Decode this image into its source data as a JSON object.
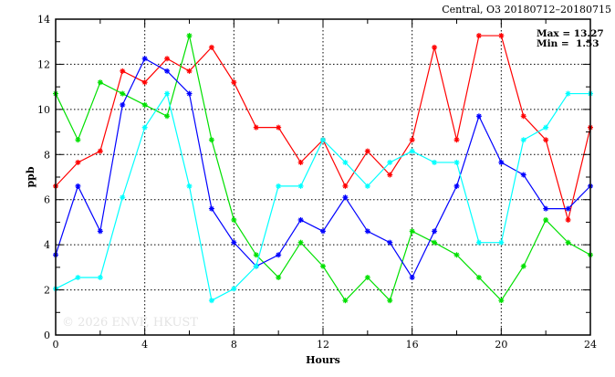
{
  "chart_data": {
    "type": "line",
    "title": "Central, O3 20180712–20180715",
    "xlabel": "Hours",
    "ylabel": "ppb",
    "xlim": [
      0,
      24
    ],
    "ylim": [
      0,
      14
    ],
    "xticks": [
      0,
      4,
      8,
      12,
      16,
      20,
      24
    ],
    "yticks": [
      0,
      2,
      4,
      6,
      8,
      10,
      12,
      14
    ],
    "grid": true,
    "annotations": {
      "max": "Max = 13.27",
      "min": "Min =  1.53"
    },
    "watermark": "© 2026  ENVF, HKUST",
    "x": [
      0,
      1,
      2,
      3,
      4,
      5,
      6,
      7,
      8,
      9,
      10,
      11,
      12,
      13,
      14,
      15,
      16,
      17,
      18,
      19,
      20,
      21,
      22,
      23,
      24
    ],
    "series": [
      {
        "name": "red",
        "color": "#ff0000",
        "values": [
          6.6,
          7.65,
          8.15,
          11.7,
          11.2,
          12.25,
          11.7,
          12.75,
          11.2,
          9.2,
          9.2,
          7.65,
          8.65,
          6.6,
          8.15,
          7.1,
          8.65,
          12.75,
          8.65,
          13.27,
          13.27,
          9.7,
          8.65,
          5.1,
          9.2
        ]
      },
      {
        "name": "green",
        "color": "#00e000",
        "values": [
          10.7,
          8.65,
          11.2,
          10.7,
          10.2,
          9.7,
          13.27,
          8.65,
          5.1,
          3.55,
          2.55,
          4.1,
          3.05,
          1.53,
          2.55,
          1.53,
          4.6,
          4.1,
          3.55,
          2.55,
          1.53,
          3.05,
          5.1,
          4.1,
          3.55
        ]
      },
      {
        "name": "blue",
        "color": "#0000ff",
        "values": [
          3.55,
          6.6,
          4.6,
          10.2,
          12.25,
          11.7,
          10.7,
          5.6,
          4.1,
          3.05,
          3.55,
          5.1,
          4.6,
          6.1,
          4.6,
          4.1,
          2.55,
          4.6,
          6.6,
          9.7,
          7.65,
          7.1,
          5.6,
          5.6,
          6.6
        ]
      },
      {
        "name": "cyan",
        "color": "#00ffff",
        "values": [
          2.05,
          2.55,
          2.55,
          6.1,
          9.2,
          10.7,
          6.6,
          1.53,
          2.05,
          3.05,
          6.6,
          6.6,
          8.65,
          7.65,
          6.6,
          7.65,
          8.15,
          7.65,
          7.65,
          4.1,
          4.1,
          8.65,
          9.2,
          10.7,
          10.7
        ]
      }
    ]
  }
}
